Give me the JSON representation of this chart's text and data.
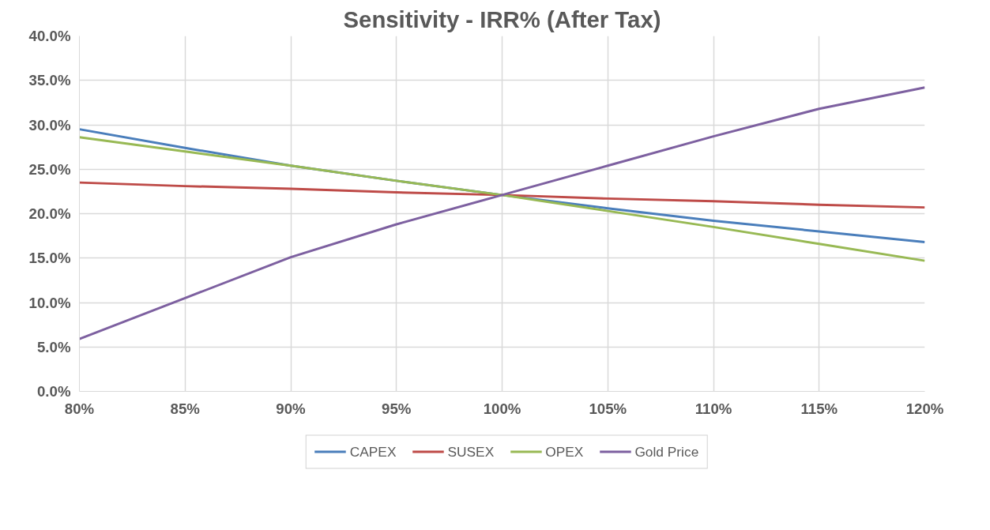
{
  "chart_data": {
    "type": "line",
    "title": "Sensitivity - IRR% (After Tax)",
    "x": [
      80,
      85,
      90,
      95,
      100,
      105,
      110,
      115,
      120
    ],
    "series": [
      {
        "name": "CAPEX",
        "color": "#4a7ebb",
        "values": [
          29.5,
          27.4,
          25.4,
          23.7,
          22.1,
          20.6,
          19.2,
          18.0,
          16.8
        ]
      },
      {
        "name": "SUSEX",
        "color": "#be4b48",
        "values": [
          23.5,
          23.1,
          22.8,
          22.4,
          22.1,
          21.7,
          21.4,
          21.0,
          20.7
        ]
      },
      {
        "name": "OPEX",
        "color": "#98b954",
        "values": [
          28.6,
          27.0,
          25.4,
          23.7,
          22.1,
          20.3,
          18.5,
          16.6,
          14.7
        ]
      },
      {
        "name": "Gold Price",
        "color": "#7d60a0",
        "values": [
          5.9,
          10.5,
          15.1,
          18.8,
          22.1,
          25.4,
          28.7,
          31.8,
          34.2
        ]
      }
    ],
    "xlim": [
      80,
      120
    ],
    "xticks": [
      {
        "value": 80,
        "label": "80%"
      },
      {
        "value": 85,
        "label": "85%"
      },
      {
        "value": 90,
        "label": "90%"
      },
      {
        "value": 95,
        "label": "95%"
      },
      {
        "value": 100,
        "label": "100%"
      },
      {
        "value": 105,
        "label": "105%"
      },
      {
        "value": 110,
        "label": "110%"
      },
      {
        "value": 115,
        "label": "115%"
      },
      {
        "value": 120,
        "label": "120%"
      }
    ],
    "ylim": [
      0,
      40
    ],
    "yticks": [
      {
        "value": 0,
        "label": "0.0%"
      },
      {
        "value": 5,
        "label": "5.0%"
      },
      {
        "value": 10,
        "label": "10.0%"
      },
      {
        "value": 15,
        "label": "15.0%"
      },
      {
        "value": 20,
        "label": "20.0%"
      },
      {
        "value": 25,
        "label": "25.0%"
      },
      {
        "value": 30,
        "label": "30.0%"
      },
      {
        "value": 35,
        "label": "35.0%"
      },
      {
        "value": 40,
        "label": "40.0%"
      }
    ],
    "grid": true,
    "legend": "bottom",
    "marker": "none",
    "line_style": "solid"
  }
}
